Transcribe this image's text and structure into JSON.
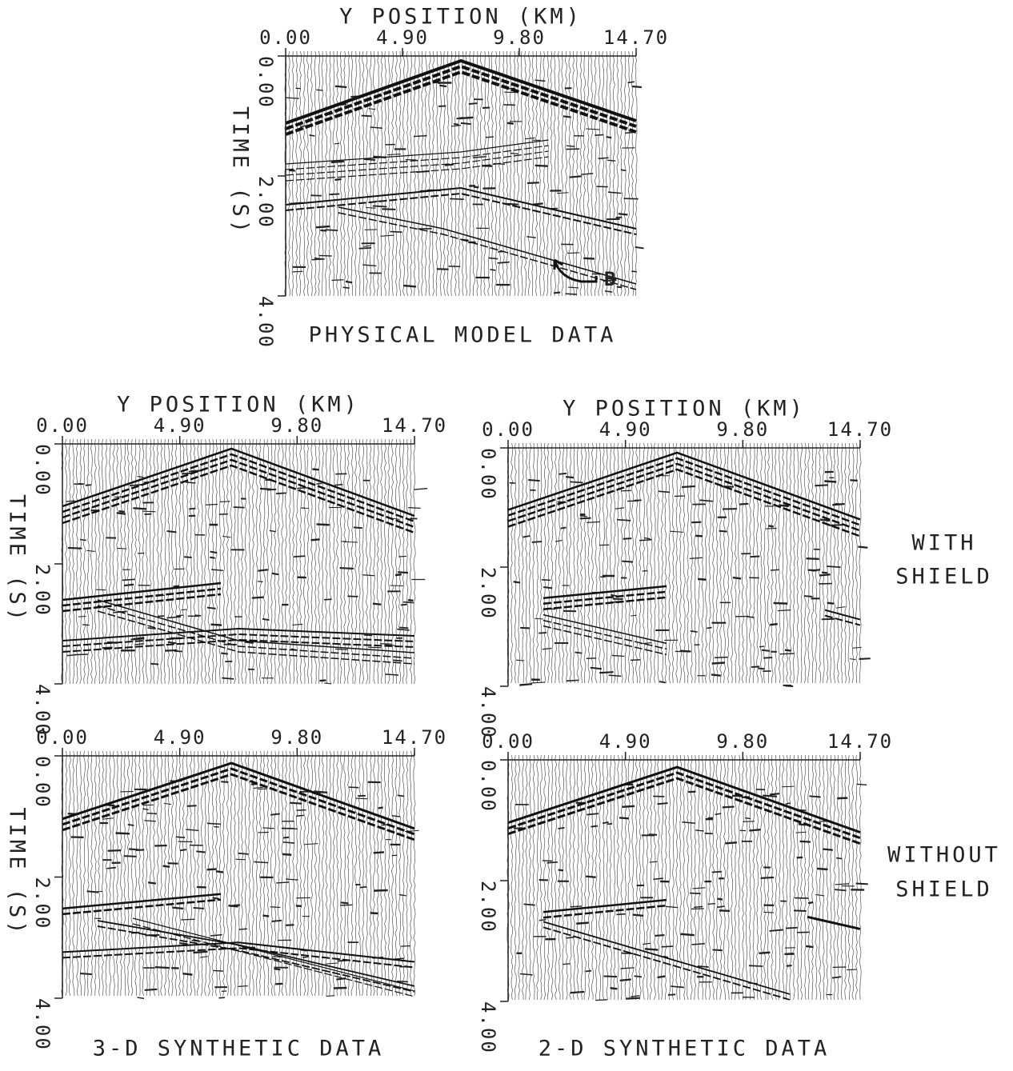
{
  "panels": [
    {
      "x_label": "Y POSITION (KM)",
      "x_ticks": [
        "0.00",
        "4.90",
        "9.80",
        "14.70"
      ],
      "y_label": "TIME (S)",
      "y_ticks": [
        "0.00",
        "2.00",
        "4.00"
      ],
      "caption": "PHYSICAL MODEL DATA",
      "annotation": "B"
    },
    {
      "x_label": "Y POSITION (KM)",
      "x_ticks": [
        "0.00",
        "4.90",
        "9.80",
        "14.70"
      ],
      "y_label": "TIME (S)",
      "y_ticks": [
        "0.00",
        "2.00",
        "4.00"
      ]
    },
    {
      "x_label": "Y POSITION (KM)",
      "x_ticks": [
        "0.00",
        "4.90",
        "9.80",
        "14.70"
      ],
      "y_ticks": [
        "0.00",
        "2.00",
        "4.00"
      ]
    },
    {
      "x_ticks": [
        "0.00",
        "4.90",
        "9.80",
        "14.70"
      ],
      "y_label": "TIME (S)",
      "y_ticks": [
        "0.00",
        "2.00",
        "4.00"
      ],
      "caption": "3-D SYNTHETIC DATA"
    },
    {
      "x_ticks": [
        "0.00",
        "4.90",
        "9.80",
        "14.70"
      ],
      "y_ticks": [
        "0.00",
        "2.00",
        "4.00"
      ],
      "caption": "2-D SYNTHETIC DATA"
    }
  ],
  "row_labels": [
    [
      "WITH",
      "SHIELD"
    ],
    [
      "WITHOUT",
      "SHIELD"
    ]
  ]
}
